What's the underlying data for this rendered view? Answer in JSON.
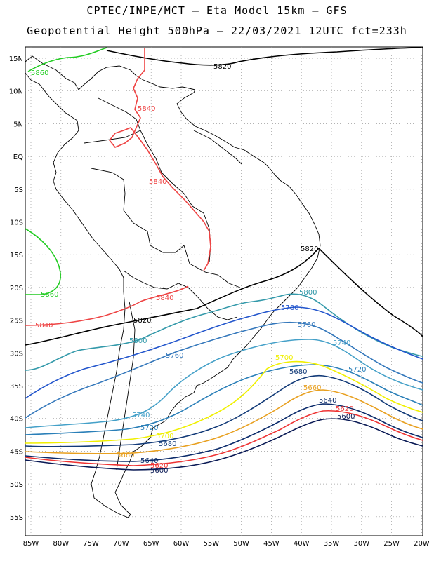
{
  "header": {
    "line1": "CPTEC/INPE/MCT –  Eta Model 15km – GFS",
    "line2": "Geopotential Height 500hPa – 22/03/2021 12UTC fct=233h"
  },
  "axes": {
    "lat_labels": [
      "15N",
      "10N",
      "5N",
      "EQ",
      "5S",
      "10S",
      "15S",
      "20S",
      "25S",
      "30S",
      "35S",
      "40S",
      "45S",
      "50S",
      "55S"
    ],
    "lon_labels": [
      "85W",
      "80W",
      "75W",
      "70W",
      "65W",
      "60W",
      "55W",
      "50W",
      "45W",
      "40W",
      "35W",
      "30W",
      "25W",
      "20W"
    ]
  },
  "colors": {
    "5860": "#22cc22",
    "5840": "#ee4444",
    "5820": "#000000",
    "5800": "#3399aa",
    "5780": "#2255cc",
    "5760": "#3377bb",
    "5740": "#44a0c8",
    "5720": "#2a7fb8",
    "5700": "#f0f000",
    "5680": "#123a78",
    "5660": "#e8a020",
    "5640": "#0a2a6a",
    "5620": "#ee3333",
    "5600": "#0a1a55"
  },
  "contour_labels": [
    {
      "text": "5860",
      "level": "5860"
    },
    {
      "text": "5860",
      "level": "5860"
    },
    {
      "text": "5820",
      "level": "5820"
    },
    {
      "text": "5840",
      "level": "5840"
    },
    {
      "text": "5840",
      "level": "5840"
    },
    {
      "text": "5820",
      "level": "5820"
    },
    {
      "text": "5840",
      "level": "5840"
    },
    {
      "text": "5840",
      "level": "5840"
    },
    {
      "text": "5820",
      "level": "5820"
    },
    {
      "text": "5800",
      "level": "5800"
    },
    {
      "text": "5780",
      "level": "5780"
    },
    {
      "text": "5760",
      "level": "5760"
    },
    {
      "text": "5800",
      "level": "5800"
    },
    {
      "text": "5740",
      "level": "5740"
    },
    {
      "text": "5760",
      "level": "5760"
    },
    {
      "text": "5700",
      "level": "5700"
    },
    {
      "text": "5720",
      "level": "5720"
    },
    {
      "text": "5680",
      "level": "5680"
    },
    {
      "text": "5660",
      "level": "5660"
    },
    {
      "text": "5640",
      "level": "5640"
    },
    {
      "text": "5620",
      "level": "5620"
    },
    {
      "text": "5600",
      "level": "5600"
    },
    {
      "text": "5740",
      "level": "5740"
    },
    {
      "text": "5720",
      "level": "5720"
    },
    {
      "text": "5700",
      "level": "5700"
    },
    {
      "text": "5680",
      "level": "5680"
    },
    {
      "text": "5660",
      "level": "5660"
    },
    {
      "text": "5640",
      "level": "5640"
    },
    {
      "text": "5620",
      "level": "5620"
    },
    {
      "text": "5600",
      "level": "5600"
    }
  ]
}
